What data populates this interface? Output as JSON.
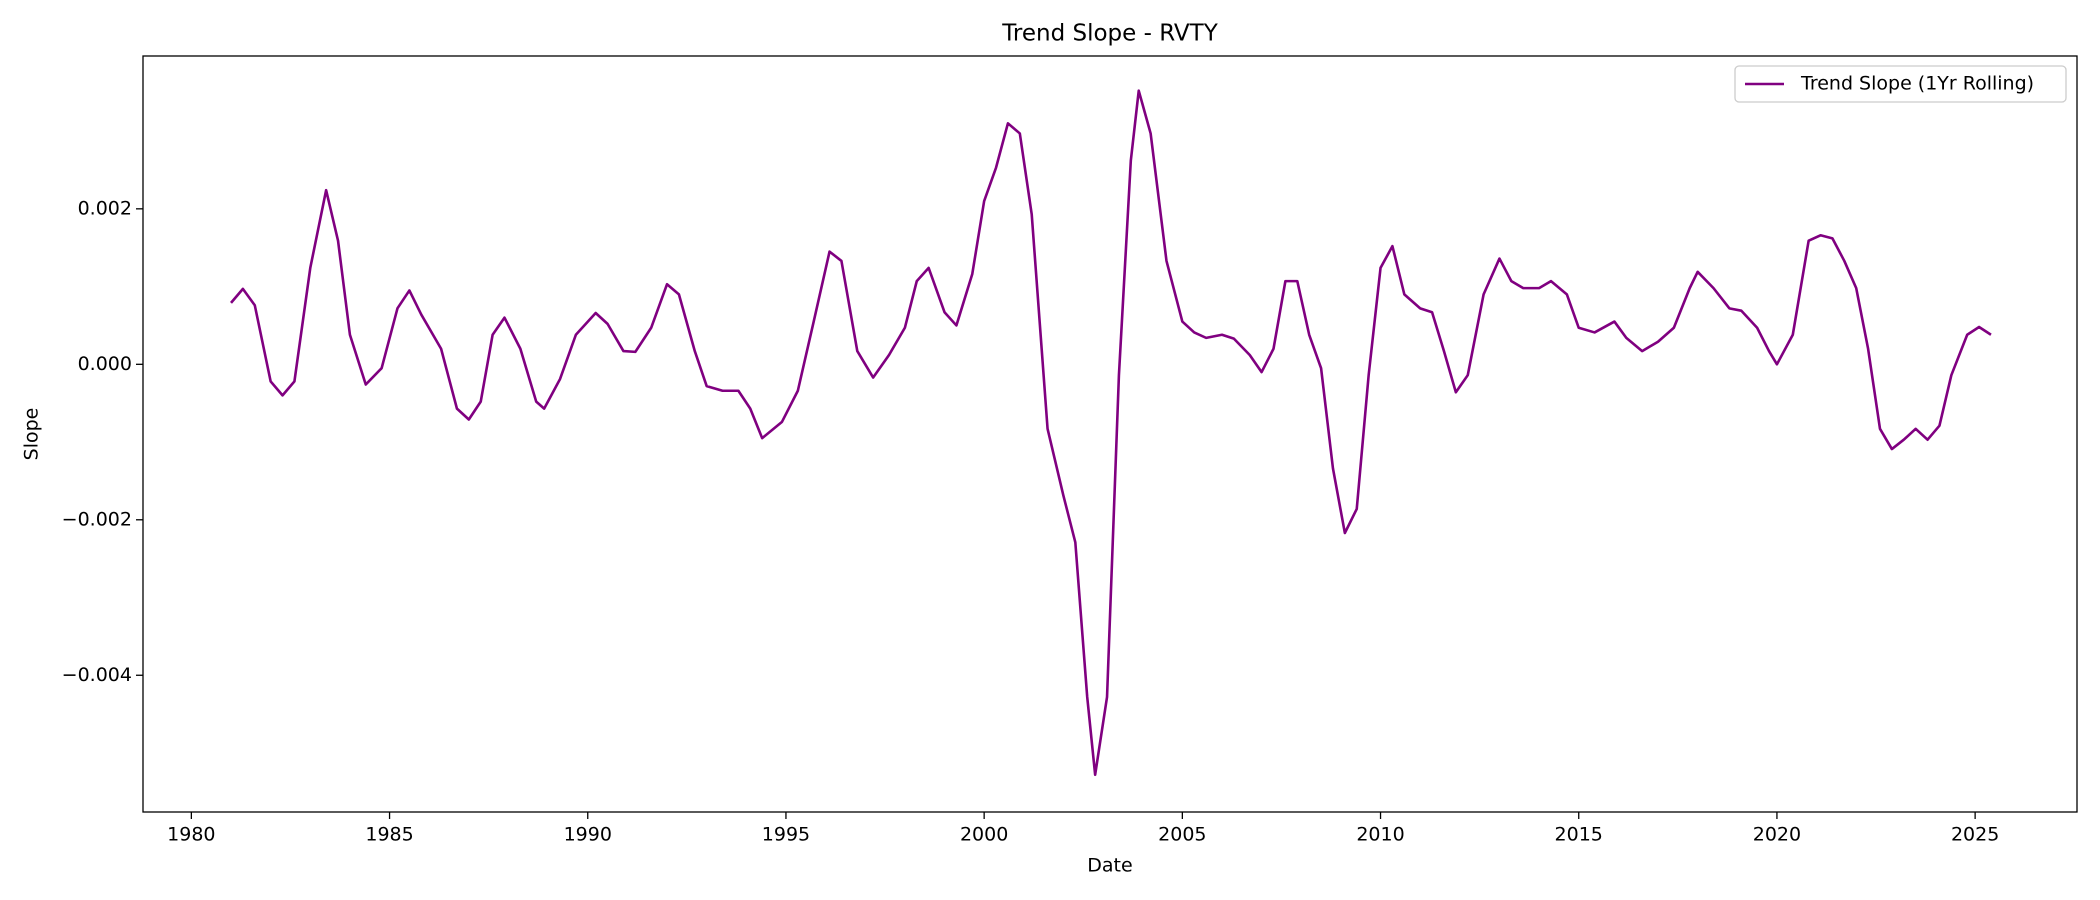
{
  "chart_data": {
    "type": "line",
    "title": "Trend Slope - RVTY",
    "xlabel": "Date",
    "ylabel": "Slope",
    "legend": "upper right",
    "grid": false,
    "xlim": [
      1978.78,
      2027.57
    ],
    "xticks": [
      1980,
      1985,
      1990,
      1995,
      2000,
      2005,
      2010,
      2015,
      2020,
      2025
    ],
    "ylim": [
      -0.005759,
      0.003966
    ],
    "yticks": [
      {
        "value": -0.004,
        "label": "−0.004"
      },
      {
        "value": -0.002,
        "label": "−0.002"
      },
      {
        "value": 0,
        "label": "0.000"
      },
      0.002
    ],
    "x": [
      1981.0,
      1981.3,
      1981.6,
      1982.0,
      1982.3,
      1982.6,
      1983.0,
      1983.4,
      1983.7,
      1984.0,
      1984.4,
      1984.8,
      1985.2,
      1985.5,
      1985.8,
      1986.3,
      1986.7,
      1987.0,
      1987.3,
      1987.6,
      1987.9,
      1988.3,
      1988.7,
      1988.9,
      1989.3,
      1989.7,
      1990.2,
      1990.5,
      1990.9,
      1991.2,
      1991.6,
      1992.0,
      1992.3,
      1992.7,
      1993.0,
      1993.4,
      1993.8,
      1994.1,
      1994.4,
      1994.9,
      1995.3,
      1995.7,
      1996.1,
      1996.4,
      1996.8,
      1997.2,
      1997.6,
      1998.0,
      1998.3,
      1998.6,
      1999.0,
      1999.3,
      1999.7,
      2000.0,
      2000.3,
      2000.6,
      2000.9,
      2001.2,
      2001.6,
      2002.0,
      2002.3,
      2002.6,
      2002.8,
      2003.1,
      2003.4,
      2003.7,
      2003.9,
      2004.2,
      2004.6,
      2005.0,
      2005.3,
      2005.6,
      2006.0,
      2006.3,
      2006.7,
      2007.0,
      2007.3,
      2007.6,
      2007.9,
      2008.2,
      2008.5,
      2008.8,
      2009.1,
      2009.4,
      2009.7,
      2010.0,
      2010.3,
      2010.6,
      2011.0,
      2011.3,
      2011.6,
      2011.9,
      2012.2,
      2012.6,
      2013.0,
      2013.3,
      2013.6,
      2014.0,
      2014.3,
      2014.7,
      2015.0,
      2015.4,
      2015.9,
      2016.2,
      2016.6,
      2017.0,
      2017.4,
      2017.8,
      2018.0,
      2018.4,
      2018.8,
      2019.1,
      2019.5,
      2019.8,
      2020.0,
      2020.4,
      2020.8,
      2021.1,
      2021.4,
      2021.7,
      2022.0,
      2022.3,
      2022.6,
      2022.9,
      2023.2,
      2023.5,
      2023.8,
      2024.1,
      2024.4,
      2024.8,
      2025.1,
      2025.4
    ],
    "series": [
      {
        "name": "Trend Slope (1Yr Rolling)",
        "color": "#800080",
        "values": [
          0.00079,
          0.00097,
          0.00076,
          -0.00022,
          -0.0004,
          -0.00022,
          0.00124,
          0.00224,
          0.00159,
          0.00038,
          -0.00026,
          -5e-05,
          0.00072,
          0.00095,
          0.00064,
          0.0002,
          -0.00057,
          -0.00071,
          -0.00048,
          0.00038,
          0.0006,
          0.0002,
          -0.00048,
          -0.00057,
          -0.00019,
          0.00038,
          0.00066,
          0.00052,
          0.00017,
          0.00016,
          0.00047,
          0.00103,
          0.0009,
          0.00017,
          -0.00028,
          -0.00034,
          -0.00034,
          -0.00057,
          -0.00095,
          -0.00074,
          -0.00034,
          0.00055,
          0.00145,
          0.00133,
          0.00017,
          -0.00017,
          0.00012,
          0.00047,
          0.00107,
          0.00124,
          0.00067,
          0.0005,
          0.00116,
          0.0021,
          0.00253,
          0.0031,
          0.00297,
          0.00193,
          -0.00083,
          -0.00169,
          -0.00229,
          -0.00428,
          -0.00528,
          -0.00428,
          -0.00014,
          0.00262,
          0.00352,
          0.00297,
          0.00133,
          0.00055,
          0.00041,
          0.00034,
          0.00038,
          0.00033,
          0.00012,
          -0.0001,
          0.0002,
          0.00107,
          0.00107,
          0.00038,
          -5e-05,
          -0.00134,
          -0.00217,
          -0.00186,
          -0.00014,
          0.00124,
          0.00152,
          0.0009,
          0.00072,
          0.00067,
          0.00017,
          -0.00036,
          -0.00014,
          0.0009,
          0.00136,
          0.00107,
          0.00098,
          0.00098,
          0.00107,
          0.0009,
          0.00047,
          0.00041,
          0.00055,
          0.00034,
          0.00017,
          0.00029,
          0.00047,
          0.00098,
          0.00119,
          0.00098,
          0.00072,
          0.00069,
          0.00047,
          0.00017,
          0,
          0.00038,
          0.00159,
          0.00166,
          0.00162,
          0.00133,
          0.00098,
          0.0002,
          -0.00083,
          -0.00109,
          -0.00097,
          -0.00083,
          -0.00097,
          -0.00079,
          -0.00014,
          0.00038,
          0.00048,
          0.00038
        ]
      }
    ]
  }
}
